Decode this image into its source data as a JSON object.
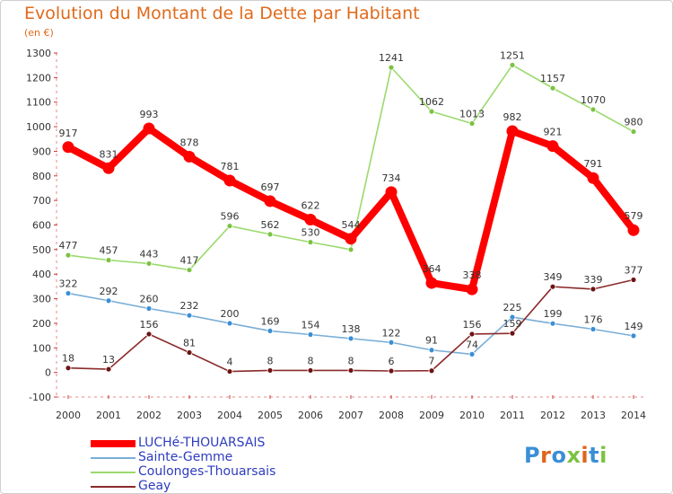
{
  "title": "Evolution du Montant de la Dette par Habitant",
  "subtitle": "(en €)",
  "logo": {
    "text": "Proxiti",
    "letter_colors": [
      "#3a8fd6",
      "#e0641b",
      "#3a8fd6",
      "#7cc242",
      "#e0641b",
      "#3a8fd6",
      "#7cc242"
    ]
  },
  "chart_data": {
    "type": "line",
    "title": "Evolution du Montant de la Dette par Habitant",
    "subtitle": "(en €)",
    "xlabel": "",
    "ylabel": "",
    "x": [
      "2000",
      "2001",
      "2002",
      "2003",
      "2004",
      "2005",
      "2006",
      "2007",
      "2008",
      "2009",
      "2010",
      "2011",
      "2012",
      "2013",
      "2014"
    ],
    "y_ticks": [
      "-100",
      "0",
      "100",
      "200",
      "300",
      "400",
      "500",
      "600",
      "700",
      "800",
      "900",
      "1000",
      "1100",
      "1200",
      "1300"
    ],
    "ylim": [
      -100,
      1300
    ],
    "grid": false,
    "legend_position": "bottom-left",
    "series": [
      {
        "name": "Coulonges-Thouarsais",
        "color": "#9bd96c",
        "marker_color": "#7cc242",
        "emphasis": false,
        "values": [
          477,
          457,
          443,
          417,
          596,
          562,
          530,
          500,
          1241,
          1062,
          1013,
          1251,
          1157,
          1070,
          980
        ],
        "labels": [
          "477",
          "457",
          "443",
          "417",
          "596",
          "562",
          "530",
          "",
          "1241",
          "1062",
          "1013",
          "1251",
          "1157",
          "1070",
          "980"
        ]
      },
      {
        "name": "Sainte-Gemme",
        "color": "#7aaed6",
        "marker_color": "#3a8fd6",
        "emphasis": false,
        "values": [
          322,
          292,
          260,
          232,
          200,
          169,
          154,
          138,
          122,
          91,
          74,
          225,
          199,
          176,
          149
        ],
        "labels": [
          "322",
          "292",
          "260",
          "232",
          "200",
          "169",
          "154",
          "138",
          "122",
          "91",
          "74",
          "225",
          "199",
          "176",
          "149"
        ]
      },
      {
        "name": "Geay",
        "color": "#8b2a2a",
        "marker_color": "#6d1414",
        "emphasis": false,
        "values": [
          18,
          13,
          156,
          81,
          4,
          8,
          8,
          8,
          6,
          7,
          156,
          159,
          349,
          339,
          377
        ],
        "labels": [
          "18",
          "13",
          "156",
          "81",
          "4",
          "8",
          "8",
          "8",
          "6",
          "7",
          "156",
          "159",
          "349",
          "339",
          "377"
        ]
      },
      {
        "name": "LUCHé-THOUARSAIS",
        "color": "#ff0000",
        "marker_color": "#ff0000",
        "emphasis": true,
        "values": [
          917,
          831,
          993,
          878,
          781,
          697,
          622,
          544,
          734,
          364,
          338,
          982,
          921,
          791,
          579
        ],
        "labels": [
          "917",
          "831",
          "993",
          "878",
          "781",
          "697",
          "622",
          "544",
          "734",
          "364",
          "338",
          "982",
          "921",
          "791",
          "579"
        ]
      }
    ],
    "legend_order": [
      "LUCHé-THOUARSAIS",
      "Sainte-Gemme",
      "Coulonges-Thouarsais",
      "Geay"
    ]
  }
}
